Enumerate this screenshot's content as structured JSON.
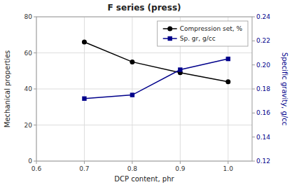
{
  "chart_data": {
    "type": "line",
    "title": "F series (press)",
    "xlabel": "DCP content, phr",
    "ylabel": "Mechanical properties",
    "y2label": "Specific gravity, g/cc",
    "x": [
      0.7,
      0.8,
      0.9,
      1.0
    ],
    "series": [
      {
        "name": "Compression set, %",
        "color": "#000000",
        "marker": "circle",
        "values": [
          66,
          55,
          49,
          44
        ]
      },
      {
        "name": "Sp. gr, g/cc",
        "color": "#00008B",
        "marker": "square",
        "axis": "y2",
        "values": [
          0.172,
          0.175,
          0.196,
          0.205
        ]
      }
    ],
    "xlim": [
      0.6,
      1.05
    ],
    "xticks": [
      0.6,
      0.7,
      0.8,
      0.9,
      {
        "value": 1.0,
        "label": "1.0"
      }
    ],
    "ylim": [
      0,
      80
    ],
    "yticks": [
      0,
      20,
      40,
      60,
      80
    ],
    "y2lim": [
      0.12,
      0.24
    ],
    "y2ticks": [
      0.12,
      0.14,
      0.16,
      0.18,
      {
        "value": 0.2,
        "label": "0.20"
      },
      0.22,
      0.24
    ],
    "grid": true,
    "legend": "upper right"
  }
}
